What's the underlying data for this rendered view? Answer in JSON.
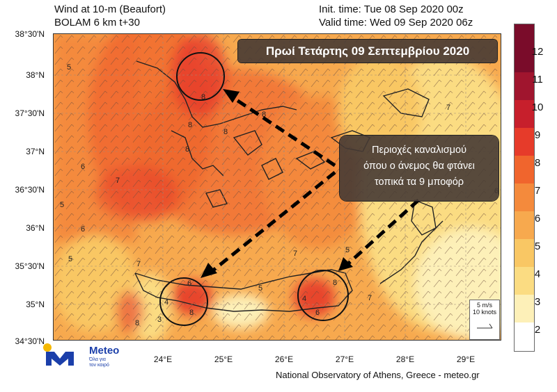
{
  "header": {
    "title_line1": "Wind at 10-m (Beaufort)",
    "title_line2": "BOLAM 6 km t+30",
    "init_time": "Init. time: Tue 08 Sep 2020 00z",
    "valid_time": "Valid time: Wed 09 Sep 2020 06z"
  },
  "map": {
    "banner_title": "Πρωί Τετάρτης 09 Σεπτεμβρίου 2020",
    "annotation_lines": [
      "Περιοχές καναλισμού",
      "όπου ο άνεμος θα φτάνει",
      "τοπικά τα 9 μποφόρ"
    ],
    "lat_labels": [
      "38°30'N",
      "38°N",
      "37°30'N",
      "37°N",
      "36°30'N",
      "36°N",
      "35°30'N",
      "35°N",
      "34°30'N"
    ],
    "lon_labels": [
      "24°E",
      "25°E",
      "26°E",
      "27°E",
      "28°E",
      "29°E"
    ],
    "scale_line1": "5 m/s",
    "scale_line2": "10 knots",
    "field_numbers": [
      "5",
      "5",
      "6",
      "6",
      "7",
      "7",
      "8",
      "8",
      "8",
      "8",
      "8",
      "5",
      "7",
      "5",
      "6",
      "4",
      "3",
      "8",
      "8",
      "8",
      "7",
      "6",
      "4",
      "5",
      "7",
      "6"
    ]
  },
  "colorbar": {
    "labels": [
      "12",
      "11",
      "10",
      "9",
      "8",
      "7",
      "6",
      "5",
      "4",
      "3",
      "2"
    ],
    "colors": [
      "#7a0c2a",
      "#a0152e",
      "#c71f2c",
      "#e63b2a",
      "#f0652d",
      "#f48a3c",
      "#f7a94e",
      "#f9c764",
      "#fbdc82",
      "#fdf0b8",
      "#ffffff"
    ]
  },
  "logo": {
    "name": "Meteo",
    "tagline_1": "Όλα για",
    "tagline_2": "τον καιρό"
  },
  "footer": {
    "credit": "National Observatory of Athens, Greece - meteo.gr"
  }
}
